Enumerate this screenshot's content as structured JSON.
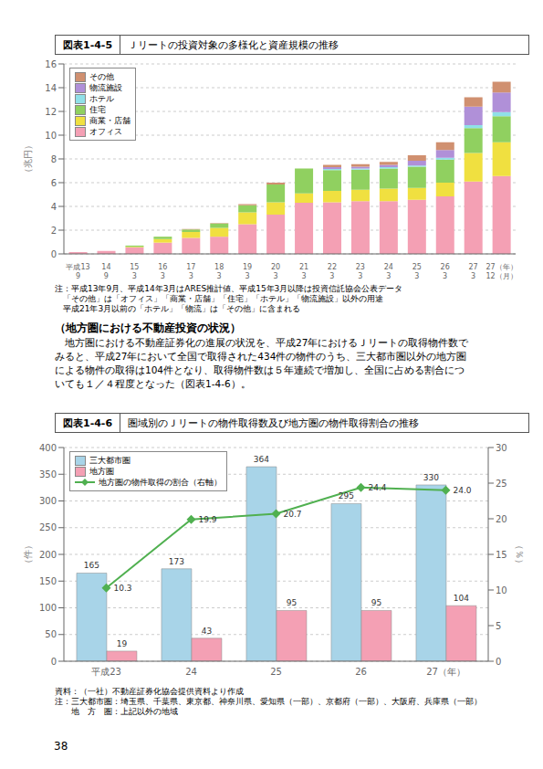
{
  "title": "（地方圏における不動産投資の状況）",
  "annotations": [
    "　地方圏における不動産証券化の進展の状況を、平成27年におけるＪリートの取得物件数で",
    "みると、平成27年において全国で取得された434件の物件のうち、三大都市圏以外の地方圏",
    "による物件の取得は104件となり、取得物件数は５年連続で増加し、全国に占める割合につ",
    "いても１／４程度となった（図表1-4-6）。"
  ],
  "footer": "38",
  "chart_data": [
    {
      "type": "bar",
      "stacked": true,
      "title": "図表1-4-5   Ｊリートの投資対象の多様化と資産規模の推移",
      "ylabel": "（兆円）",
      "ylim": [
        0,
        16
      ],
      "yticks": [
        0,
        2,
        4,
        6,
        8,
        10,
        12,
        14,
        16
      ],
      "grid": true,
      "legend": "upper left",
      "categories": [
        "平成13\n9",
        "14\n9",
        "15\n3",
        "16\n3",
        "17\n3",
        "18\n3",
        "19\n3",
        "20\n3",
        "21\n3",
        "22\n3",
        "23\n3",
        "24\n3",
        "25\n3",
        "26\n3",
        "27\n3",
        "27（年）\n12（月）"
      ],
      "series": [
        {
          "name": "オフィス",
          "color": "#f4a0b4",
          "values": [
            0.15,
            0.25,
            0.55,
            0.95,
            1.35,
            1.45,
            2.5,
            3.3,
            4.3,
            4.35,
            4.45,
            4.45,
            4.55,
            4.85,
            6.1,
            6.55
          ]
        },
        {
          "name": "商業・店舗",
          "color": "#f0e040",
          "values": [
            0.0,
            0.0,
            0.05,
            0.3,
            0.5,
            0.75,
            1.0,
            1.05,
            0.8,
            0.95,
            0.95,
            1.05,
            1.0,
            1.15,
            2.4,
            2.85
          ]
        },
        {
          "name": "住宅",
          "color": "#90d060",
          "values": [
            0.0,
            0.0,
            0.1,
            0.2,
            0.2,
            0.35,
            0.6,
            1.5,
            2.1,
            1.75,
            1.7,
            1.7,
            1.8,
            1.95,
            2.1,
            2.2
          ]
        },
        {
          "name": "ホテル",
          "color": "#90e0e8",
          "values": [
            0.0,
            0.0,
            0.0,
            0.0,
            0.0,
            0.0,
            0.0,
            0.0,
            0.0,
            0.1,
            0.1,
            0.1,
            0.1,
            0.15,
            0.25,
            0.35
          ]
        },
        {
          "name": "物流施設",
          "color": "#b090d8",
          "values": [
            0.0,
            0.0,
            0.0,
            0.0,
            0.0,
            0.0,
            0.0,
            0.0,
            0.0,
            0.15,
            0.15,
            0.2,
            0.4,
            0.65,
            1.55,
            1.65
          ]
        },
        {
          "name": "その他",
          "color": "#d09070",
          "values": [
            0.0,
            0.0,
            0.0,
            0.0,
            0.05,
            0.05,
            0.1,
            0.15,
            0.0,
            0.2,
            0.2,
            0.25,
            0.45,
            0.65,
            0.8,
            0.9
          ]
        }
      ],
      "annotations": [
        "注：平成13年9月、平成14年3月はARES推計値、平成15年3月以降は投資信託協会公表データ",
        "　「その他」は「オフィス」「商業・店舗」「住宅」「ホテル」「物流施設」以外の用途",
        "　平成21年3月以前の「ホテル」「物流」は「その他」に含まれる"
      ]
    },
    {
      "type": "bar",
      "title": "図表1-4-6   圏域別のＪリートの物件取得数及び地方圏の物件取得割合の推移",
      "ylabel": "（件）",
      "y2label": "（％）",
      "ylim": [
        0,
        400
      ],
      "yticks": [
        0,
        50,
        100,
        150,
        200,
        250,
        300,
        350,
        400
      ],
      "y2lim": [
        0,
        30
      ],
      "y2ticks": [
        0,
        5,
        10,
        15,
        20,
        25,
        30
      ],
      "grid": true,
      "legend": "upper left",
      "data_labels": true,
      "categories": [
        "平成23",
        "24",
        "25",
        "26",
        "27（年）"
      ],
      "series": [
        {
          "name": "三大都市圏",
          "color": "#a8d4e8",
          "values": [
            165,
            173,
            364,
            295,
            330
          ]
        },
        {
          "name": "地方圏",
          "color": "#f4a0b4",
          "values": [
            19,
            43,
            95,
            95,
            104
          ]
        },
        {
          "name": "地方圏の物件取得の割合（右軸）",
          "type": "line",
          "axis": "y2",
          "marker": "diamond",
          "color": "#50b050",
          "values": [
            10.3,
            19.9,
            20.7,
            24.4,
            24.0
          ],
          "value_labels": [
            "10.3",
            "19.9",
            "20.7",
            "24.4",
            "24.0"
          ]
        }
      ],
      "annotations": [
        "資料：（一社）不動産証券化協会提供資料より作成",
        "注：三大都市圏：埼玉県、千葉県、東京都、神奈川県、愛知県（一部）、京都府（一部）、大阪府、兵庫県（一部）",
        "　　地　方　圏：上記以外の地域"
      ]
    }
  ]
}
